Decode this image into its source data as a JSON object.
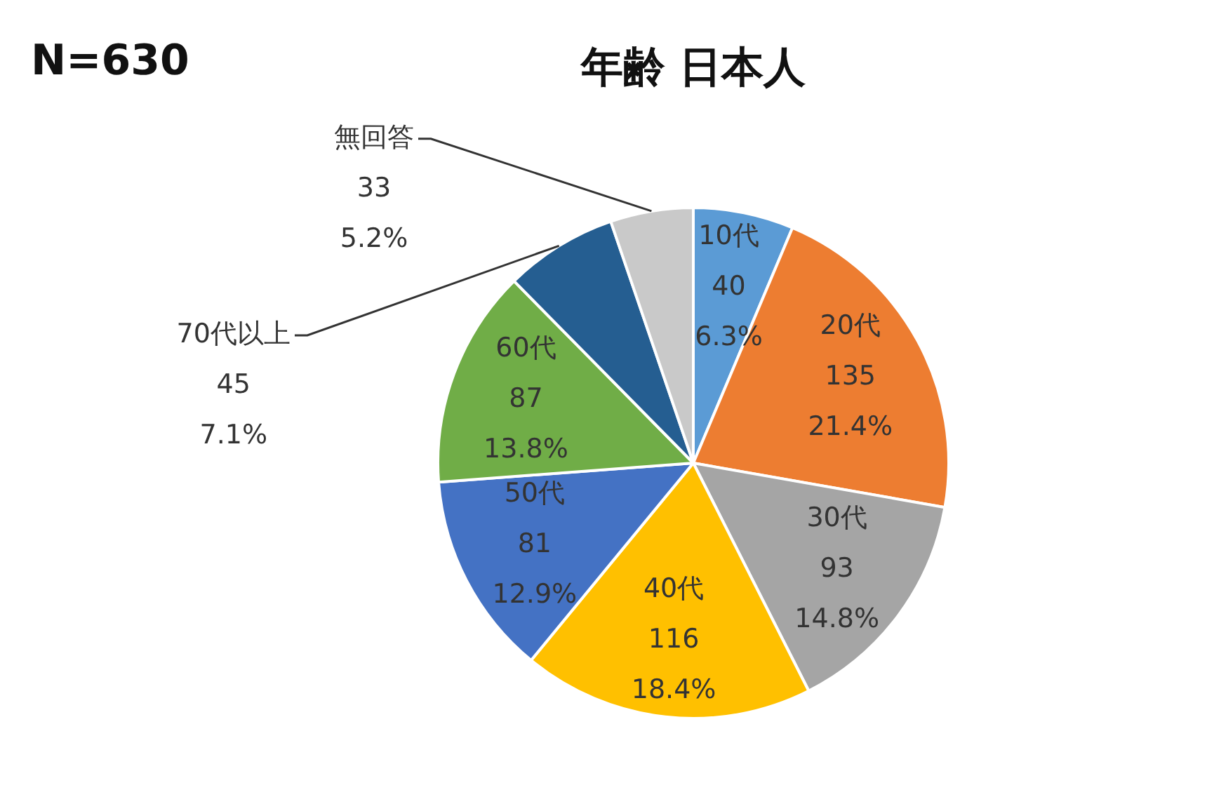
{
  "chart_data": {
    "type": "pie",
    "title": "年齢 日本人",
    "annotations": [
      "N=630"
    ],
    "categories": [
      "10代",
      "20代",
      "30代",
      "40代",
      "50代",
      "60代",
      "70代以上",
      "無回答"
    ],
    "values": [
      40,
      135,
      93,
      116,
      81,
      87,
      45,
      33
    ],
    "colors": [
      "#5b9bd5",
      "#ed7d31",
      "#a5a5a5",
      "#ffc000",
      "#4472c4",
      "#70ad47",
      "#255e91",
      "#c9c9c9"
    ],
    "value_labels": [
      "40\n6.3%",
      "135\n21.4%",
      "93\n14.8%",
      "116\n18.4%",
      "81\n12.9%",
      "87\n13.8%",
      "45\n7.1%",
      "33\n5.2%"
    ],
    "legend": false
  }
}
